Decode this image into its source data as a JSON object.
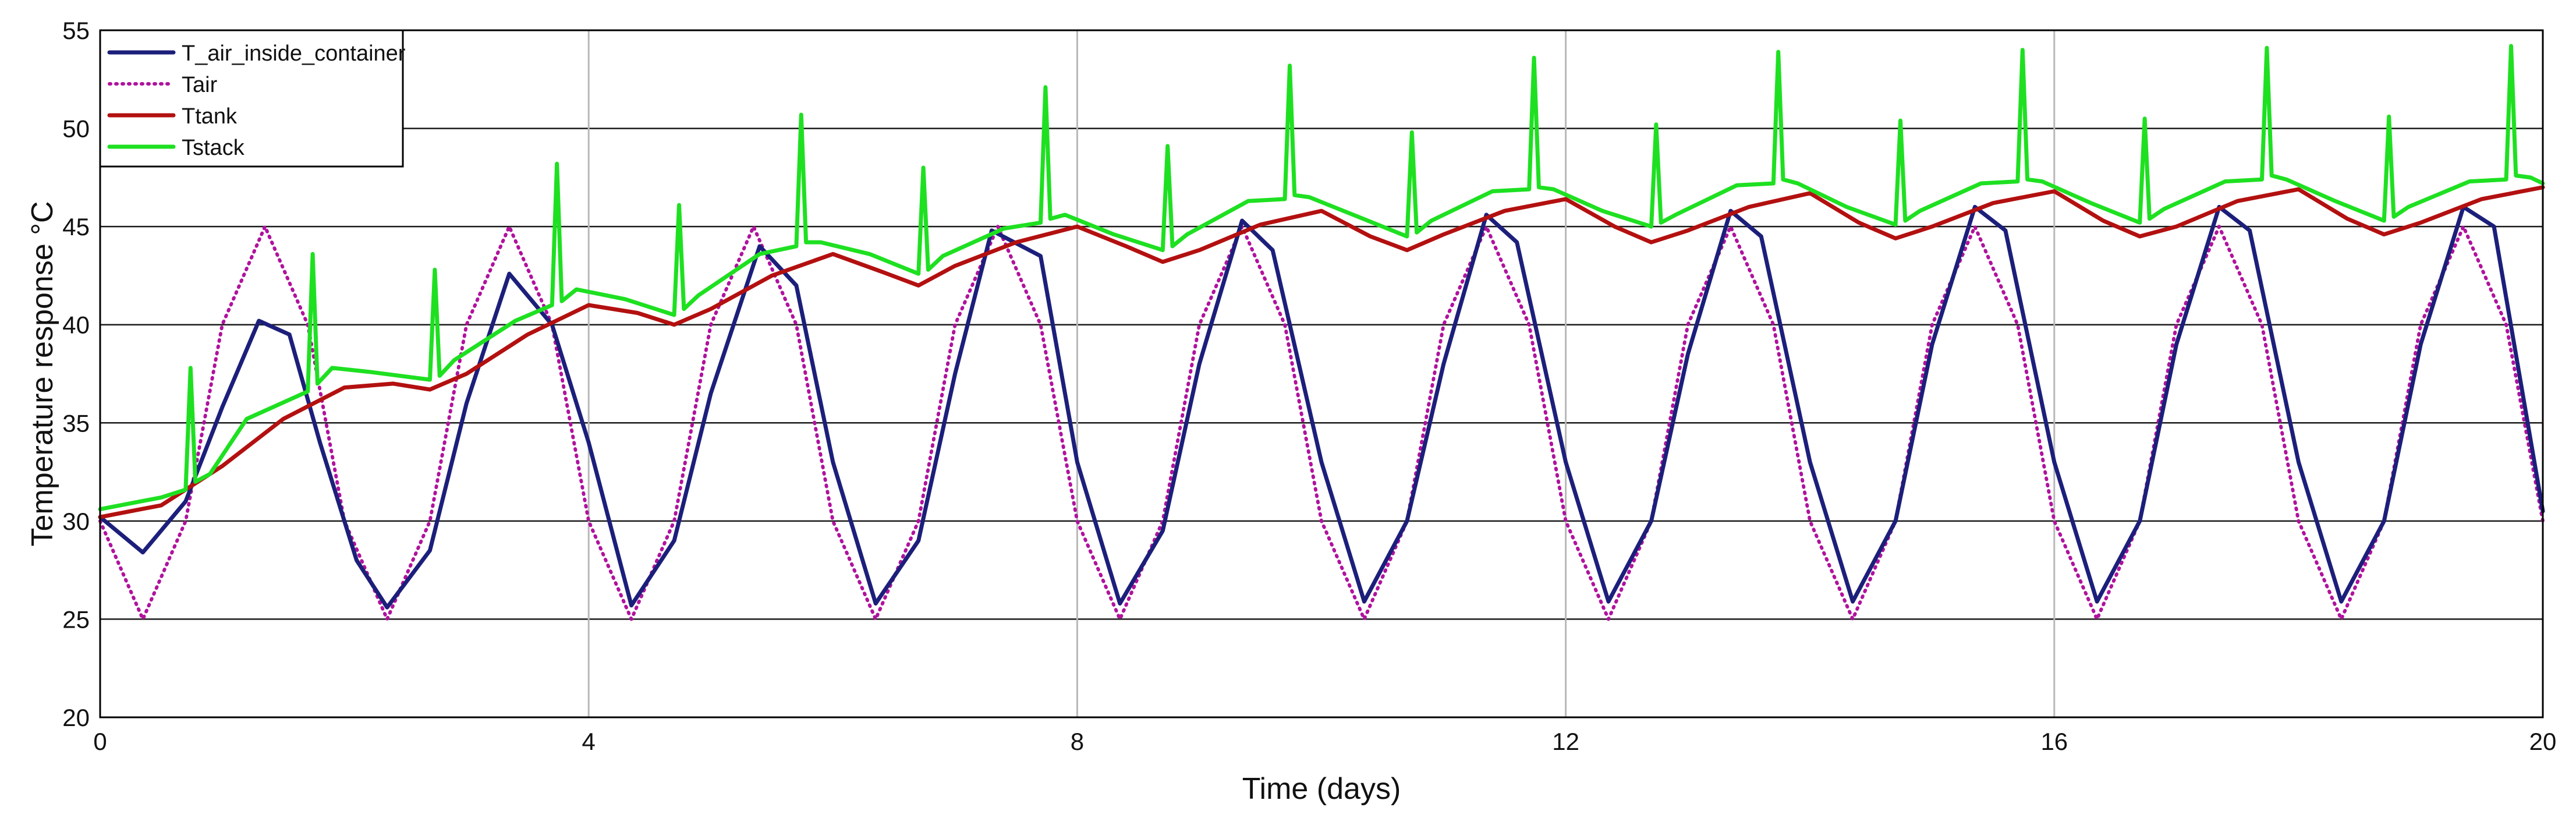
{
  "chart_data": {
    "type": "line",
    "title": "",
    "xlabel": "Time (days)",
    "ylabel": "Temperature response °C",
    "xlim": [
      0,
      20
    ],
    "ylim": [
      20,
      55
    ],
    "x_ticks": [
      0,
      4,
      8,
      12,
      16,
      20
    ],
    "y_ticks": [
      20,
      25,
      30,
      35,
      40,
      45,
      50,
      55
    ],
    "grid": true,
    "legend_position": "top-left",
    "series": [
      {
        "name": "T_air_inside_container",
        "color": "#1c1f7a",
        "style": "solid",
        "x": [
          0,
          0.35,
          0.7,
          1.0,
          1.3,
          1.55,
          1.8,
          2.1,
          2.35,
          2.7,
          3.0,
          3.35,
          3.7,
          4.0,
          4.35,
          4.7,
          5.0,
          5.4,
          5.7,
          6.0,
          6.35,
          6.7,
          7.0,
          7.3,
          7.7,
          8.0,
          8.35,
          8.7,
          9.0,
          9.35,
          9.6,
          10.0,
          10.35,
          10.7,
          11.0,
          11.35,
          11.6,
          12.0,
          12.35,
          12.7,
          13.0,
          13.35,
          13.6,
          14.0,
          14.35,
          14.7,
          15.0,
          15.35,
          15.6,
          16.0,
          16.35,
          16.7,
          17.0,
          17.35,
          17.6,
          18.0,
          18.35,
          18.7,
          19.0,
          19.35,
          19.6,
          20.0
        ],
        "values": [
          30.2,
          28.4,
          31.0,
          35.8,
          40.2,
          39.5,
          34.0,
          28.0,
          25.6,
          28.5,
          36.0,
          42.6,
          40.0,
          34.0,
          25.7,
          29.0,
          36.5,
          44.0,
          42.0,
          33.0,
          25.8,
          29.0,
          37.5,
          44.8,
          43.5,
          33.0,
          25.8,
          29.5,
          38.0,
          45.3,
          43.8,
          33.0,
          25.9,
          30.0,
          38.0,
          45.6,
          44.2,
          33.0,
          25.9,
          30.0,
          38.5,
          45.8,
          44.5,
          33.0,
          25.9,
          30.0,
          39.0,
          46.0,
          44.8,
          33.0,
          25.9,
          30.0,
          39.0,
          46.0,
          44.8,
          33.0,
          25.9,
          30.0,
          39.0,
          46.0,
          45.0,
          30.5
        ]
      },
      {
        "name": "Tair",
        "color": "#b0129e",
        "style": "dotted",
        "x": [
          0,
          0.35,
          0.7,
          1.0,
          1.35,
          1.7,
          2.0,
          2.35,
          2.7,
          3.0,
          3.35,
          3.7,
          4.0,
          4.35,
          4.7,
          5.0,
          5.35,
          5.7,
          6.0,
          6.35,
          6.7,
          7.0,
          7.35,
          7.7,
          8.0,
          8.35,
          8.7,
          9.0,
          9.35,
          9.7,
          10.0,
          10.35,
          10.7,
          11.0,
          11.35,
          11.7,
          12.0,
          12.35,
          12.7,
          13.0,
          13.35,
          13.7,
          14.0,
          14.35,
          14.7,
          15.0,
          15.35,
          15.7,
          16.0,
          16.35,
          16.7,
          17.0,
          17.35,
          17.7,
          18.0,
          18.35,
          18.7,
          19.0,
          19.35,
          19.7,
          20.0
        ],
        "values": [
          30,
          25,
          30,
          40,
          45,
          40,
          30,
          25,
          30,
          40,
          45,
          40,
          30,
          25,
          30,
          40,
          45,
          40,
          30,
          25,
          30,
          40,
          45,
          40,
          30,
          25,
          30,
          40,
          45,
          40,
          30,
          25,
          30,
          40,
          45,
          40,
          30,
          25,
          30,
          40,
          45,
          40,
          30,
          25,
          30,
          40,
          45,
          40,
          30,
          25,
          30,
          40,
          45,
          40,
          30,
          25,
          30,
          40,
          45,
          40,
          30
        ]
      },
      {
        "name": "Ttank",
        "color": "#b31010",
        "style": "solid",
        "x": [
          0,
          0.5,
          1.0,
          1.5,
          2.0,
          2.4,
          2.7,
          3.0,
          3.5,
          4.0,
          4.4,
          4.7,
          5.0,
          5.5,
          6.0,
          6.4,
          6.7,
          7.0,
          7.5,
          8.0,
          8.4,
          8.7,
          9.0,
          9.5,
          10.0,
          10.4,
          10.7,
          11.0,
          11.5,
          12.0,
          12.4,
          12.7,
          13.0,
          13.5,
          14.0,
          14.4,
          14.7,
          15.0,
          15.5,
          16.0,
          16.4,
          16.7,
          17.0,
          17.5,
          18.0,
          18.4,
          18.7,
          19.0,
          19.5,
          20.0
        ],
        "values": [
          30.2,
          30.8,
          32.8,
          35.2,
          36.8,
          37.0,
          36.7,
          37.5,
          39.5,
          41.0,
          40.6,
          40.0,
          40.8,
          42.5,
          43.6,
          42.7,
          42.0,
          43.0,
          44.2,
          45.0,
          44.0,
          43.2,
          43.8,
          45.1,
          45.8,
          44.5,
          43.8,
          44.6,
          45.8,
          46.4,
          45.0,
          44.2,
          44.8,
          46.0,
          46.7,
          45.2,
          44.4,
          45.0,
          46.2,
          46.8,
          45.3,
          44.5,
          45.0,
          46.3,
          46.9,
          45.4,
          44.6,
          45.2,
          46.4,
          47.0
        ]
      },
      {
        "name": "Tstack",
        "color": "#1ee021",
        "style": "solid",
        "x": [
          0,
          0.5,
          0.7,
          0.74,
          0.78,
          0.9,
          1.2,
          1.7,
          1.74,
          1.78,
          1.9,
          2.2,
          2.7,
          2.74,
          2.78,
          2.9,
          3.4,
          3.7,
          3.74,
          3.78,
          3.9,
          4.3,
          4.7,
          4.74,
          4.78,
          4.9,
          5.4,
          5.7,
          5.74,
          5.78,
          5.9,
          6.3,
          6.7,
          6.74,
          6.78,
          6.9,
          7.4,
          7.7,
          7.74,
          7.78,
          7.9,
          8.3,
          8.7,
          8.74,
          8.78,
          8.9,
          9.4,
          9.7,
          9.74,
          9.78,
          9.9,
          10.3,
          10.7,
          10.74,
          10.78,
          10.9,
          11.4,
          11.7,
          11.74,
          11.78,
          11.9,
          12.3,
          12.7,
          12.74,
          12.78,
          12.9,
          13.4,
          13.7,
          13.74,
          13.78,
          13.9,
          14.3,
          14.7,
          14.74,
          14.78,
          14.9,
          15.4,
          15.7,
          15.74,
          15.78,
          15.9,
          16.3,
          16.7,
          16.74,
          16.78,
          16.9,
          17.4,
          17.7,
          17.74,
          17.78,
          17.9,
          18.3,
          18.7,
          18.74,
          18.78,
          18.9,
          19.4,
          19.7,
          19.74,
          19.78,
          19.9,
          20.0
        ],
        "values": [
          30.6,
          31.2,
          31.6,
          37.8,
          32.0,
          32.4,
          35.2,
          36.6,
          43.6,
          37.0,
          37.8,
          37.6,
          37.2,
          42.8,
          37.4,
          38.2,
          40.2,
          41.0,
          48.2,
          41.2,
          41.8,
          41.3,
          40.5,
          46.1,
          40.8,
          41.5,
          43.6,
          44.0,
          50.7,
          44.2,
          44.2,
          43.6,
          42.6,
          48.0,
          42.8,
          43.5,
          44.9,
          45.2,
          52.1,
          45.4,
          45.6,
          44.6,
          43.8,
          49.1,
          44.0,
          44.6,
          46.3,
          46.4,
          53.2,
          46.6,
          46.5,
          45.5,
          44.5,
          49.8,
          44.7,
          45.3,
          46.8,
          46.9,
          53.6,
          47.0,
          46.9,
          45.8,
          45.0,
          50.2,
          45.2,
          45.6,
          47.1,
          47.2,
          53.9,
          47.4,
          47.2,
          46.0,
          45.1,
          50.4,
          45.3,
          45.8,
          47.2,
          47.3,
          54.0,
          47.4,
          47.3,
          46.2,
          45.2,
          50.5,
          45.4,
          45.9,
          47.3,
          47.4,
          54.1,
          47.6,
          47.4,
          46.3,
          45.3,
          50.6,
          45.5,
          46.0,
          47.3,
          47.4,
          54.2,
          47.6,
          47.5,
          47.2
        ]
      }
    ]
  }
}
